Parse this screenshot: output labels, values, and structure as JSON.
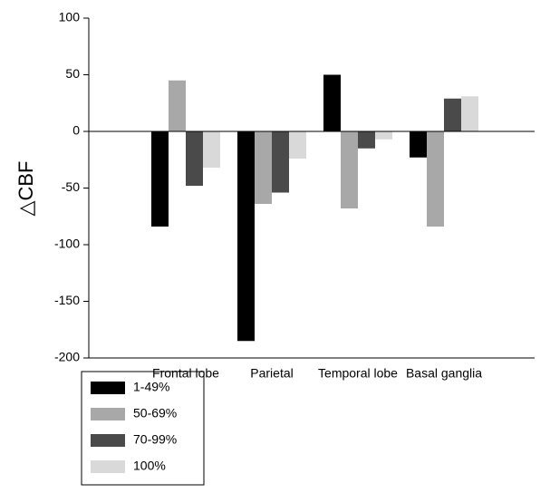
{
  "chart_data": {
    "type": "bar",
    "y_label": "△CBF",
    "categories": [
      "Frontal lobe",
      "Parietal",
      "Temporal lobe",
      "Basal ganglia"
    ],
    "series": [
      {
        "name": "1-49%",
        "color": "#000000",
        "values": [
          -84,
          -185,
          50,
          -23
        ]
      },
      {
        "name": "50-69%",
        "color": "#a8a8a8",
        "values": [
          45,
          -64,
          -68,
          -84
        ]
      },
      {
        "name": "70-99%",
        "color": "#4a4a4a",
        "values": [
          -48,
          -54,
          -15,
          29
        ]
      },
      {
        "name": "100%",
        "color": "#d9d9d9",
        "values": [
          -32,
          -24,
          -7,
          31
        ]
      }
    ],
    "ylim": [
      -200,
      100
    ],
    "yticks": [
      -200,
      -150,
      -100,
      -50,
      0,
      50,
      100
    ]
  }
}
